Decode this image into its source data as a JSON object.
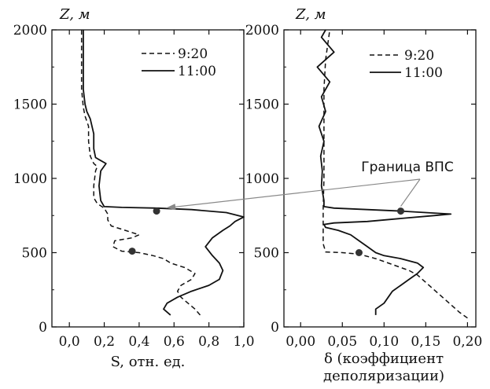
{
  "chart_data": [
    {
      "type": "line",
      "xlabel": "S, отн. ед.",
      "ylabel": "Z, м",
      "xlim": [
        -0.1,
        1.0
      ],
      "ylim": [
        0,
        2000
      ],
      "xticks": [
        "0,0",
        "0,2",
        "0,4",
        "0,6",
        "0,8",
        "1,0"
      ],
      "yticks": [
        "0",
        "500",
        "1000",
        "1500",
        "2000"
      ],
      "legend": [
        "9:20",
        "11:00"
      ],
      "series": [
        {
          "name": "9:20",
          "style": "dashed",
          "points": [
            [
              0.75,
              80
            ],
            [
              0.72,
              120
            ],
            [
              0.68,
              160
            ],
            [
              0.64,
              200
            ],
            [
              0.62,
              240
            ],
            [
              0.64,
              280
            ],
            [
              0.7,
              320
            ],
            [
              0.72,
              360
            ],
            [
              0.66,
              400
            ],
            [
              0.58,
              430
            ],
            [
              0.54,
              460
            ],
            [
              0.48,
              480
            ],
            [
              0.4,
              500
            ],
            [
              0.3,
              510
            ],
            [
              0.25,
              540
            ],
            [
              0.26,
              580
            ],
            [
              0.36,
              600
            ],
            [
              0.4,
              620
            ],
            [
              0.32,
              650
            ],
            [
              0.24,
              680
            ],
            [
              0.22,
              720
            ],
            [
              0.22,
              760
            ],
            [
              0.2,
              800
            ],
            [
              0.16,
              830
            ],
            [
              0.14,
              870
            ],
            [
              0.14,
              950
            ],
            [
              0.15,
              1050
            ],
            [
              0.16,
              1080
            ],
            [
              0.14,
              1100
            ],
            [
              0.12,
              1150
            ],
            [
              0.11,
              1250
            ],
            [
              0.11,
              1350
            ],
            [
              0.09,
              1420
            ],
            [
              0.08,
              1480
            ],
            [
              0.07,
              1600
            ],
            [
              0.07,
              1800
            ],
            [
              0.07,
              2000
            ]
          ]
        },
        {
          "name": "11:00",
          "style": "solid",
          "points": [
            [
              0.58,
              80
            ],
            [
              0.54,
              120
            ],
            [
              0.56,
              160
            ],
            [
              0.62,
              200
            ],
            [
              0.7,
              240
            ],
            [
              0.8,
              280
            ],
            [
              0.86,
              320
            ],
            [
              0.88,
              380
            ],
            [
              0.86,
              430
            ],
            [
              0.82,
              480
            ],
            [
              0.78,
              540
            ],
            [
              0.82,
              600
            ],
            [
              0.88,
              650
            ],
            [
              0.92,
              680
            ],
            [
              0.95,
              710
            ],
            [
              1.0,
              740
            ],
            [
              0.9,
              770
            ],
            [
              0.7,
              790
            ],
            [
              0.5,
              800
            ],
            [
              0.3,
              805
            ],
            [
              0.2,
              810
            ],
            [
              0.18,
              850
            ],
            [
              0.17,
              950
            ],
            [
              0.18,
              1050
            ],
            [
              0.21,
              1100
            ],
            [
              0.18,
              1120
            ],
            [
              0.15,
              1140
            ],
            [
              0.14,
              1200
            ],
            [
              0.14,
              1300
            ],
            [
              0.12,
              1400
            ],
            [
              0.1,
              1450
            ],
            [
              0.09,
              1500
            ],
            [
              0.08,
              1600
            ],
            [
              0.08,
              1800
            ],
            [
              0.08,
              2000
            ]
          ]
        }
      ],
      "markers": [
        {
          "series": "11:00",
          "x": 0.5,
          "y": 780
        },
        {
          "series": "9:20",
          "x": 0.36,
          "y": 510
        }
      ]
    },
    {
      "type": "line",
      "xlabel": "δ (коэффициент деполяризации)",
      "ylabel": "Z, м",
      "xlim": [
        -0.02,
        0.21
      ],
      "ylim": [
        0,
        2000
      ],
      "xticks": [
        "0,00",
        "0,05",
        "0,10",
        "0,15",
        "0,20"
      ],
      "yticks": [
        "0",
        "500",
        "1000",
        "1500",
        "2000"
      ],
      "legend": [
        "9:20",
        "11:00"
      ],
      "series": [
        {
          "name": "9:20",
          "style": "dashed",
          "points": [
            [
              0.2,
              60
            ],
            [
              0.19,
              100
            ],
            [
              0.18,
              150
            ],
            [
              0.17,
              200
            ],
            [
              0.16,
              250
            ],
            [
              0.15,
              300
            ],
            [
              0.14,
              350
            ],
            [
              0.13,
              380
            ],
            [
              0.12,
              400
            ],
            [
              0.11,
              420
            ],
            [
              0.1,
              440
            ],
            [
              0.09,
              460
            ],
            [
              0.07,
              490
            ],
            [
              0.05,
              500
            ],
            [
              0.03,
              505
            ],
            [
              0.027,
              560
            ],
            [
              0.027,
              650
            ],
            [
              0.027,
              800
            ],
            [
              0.028,
              1000
            ],
            [
              0.028,
              1200
            ],
            [
              0.028,
              1400
            ],
            [
              0.028,
              1600
            ],
            [
              0.03,
              1800
            ],
            [
              0.035,
              2000
            ]
          ]
        },
        {
          "name": "11:00",
          "style": "solid",
          "points": [
            [
              0.09,
              80
            ],
            [
              0.09,
              120
            ],
            [
              0.1,
              160
            ],
            [
              0.105,
              200
            ],
            [
              0.11,
              240
            ],
            [
              0.12,
              280
            ],
            [
              0.13,
              320
            ],
            [
              0.14,
              360
            ],
            [
              0.147,
              400
            ],
            [
              0.14,
              430
            ],
            [
              0.12,
              460
            ],
            [
              0.1,
              480
            ],
            [
              0.09,
              500
            ],
            [
              0.08,
              540
            ],
            [
              0.07,
              580
            ],
            [
              0.06,
              620
            ],
            [
              0.045,
              650
            ],
            [
              0.03,
              670
            ],
            [
              0.028,
              690
            ],
            [
              0.04,
              700
            ],
            [
              0.08,
              710
            ],
            [
              0.12,
              730
            ],
            [
              0.16,
              750
            ],
            [
              0.18,
              760
            ],
            [
              0.15,
              770
            ],
            [
              0.12,
              780
            ],
            [
              0.08,
              790
            ],
            [
              0.04,
              800
            ],
            [
              0.028,
              810
            ],
            [
              0.028,
              850
            ],
            [
              0.025,
              950
            ],
            [
              0.026,
              1050
            ],
            [
              0.024,
              1150
            ],
            [
              0.028,
              1250
            ],
            [
              0.022,
              1350
            ],
            [
              0.03,
              1450
            ],
            [
              0.025,
              1550
            ],
            [
              0.035,
              1650
            ],
            [
              0.02,
              1750
            ],
            [
              0.04,
              1850
            ],
            [
              0.025,
              1950
            ],
            [
              0.03,
              2000
            ]
          ]
        }
      ],
      "markers": [
        {
          "series": "11:00",
          "x": 0.12,
          "y": 780
        },
        {
          "series": "9:20",
          "x": 0.07,
          "y": 500
        }
      ]
    }
  ],
  "annotation": {
    "label": "Граница ВПС"
  }
}
